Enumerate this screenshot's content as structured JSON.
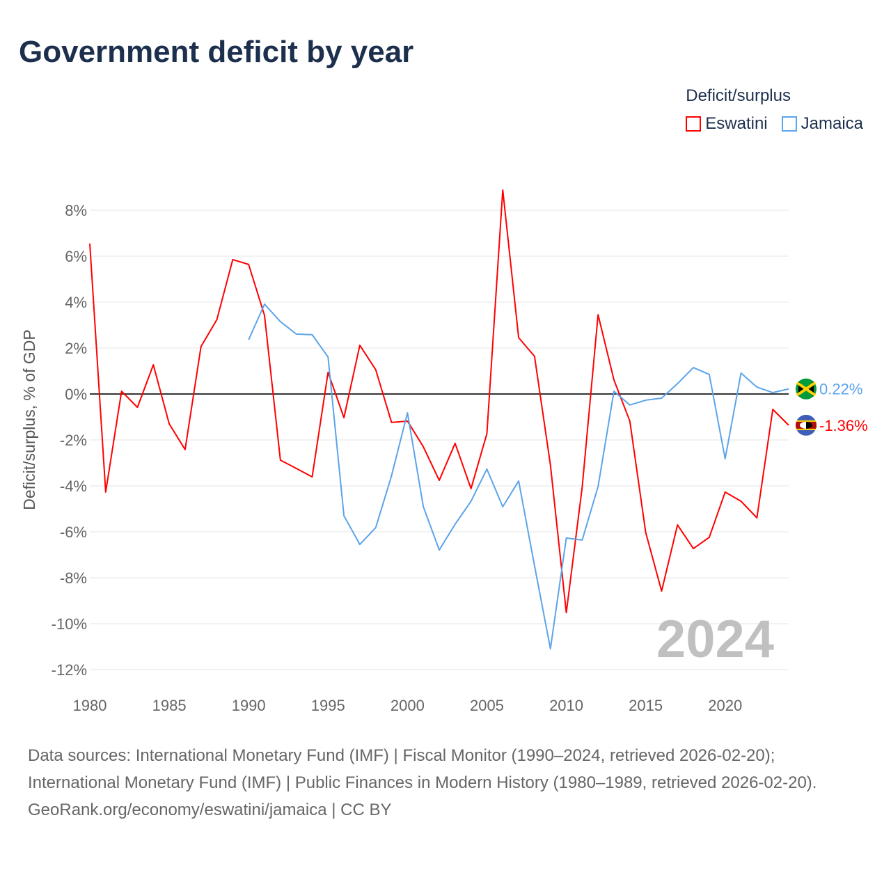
{
  "title": "Government deficit by year",
  "legend": {
    "title": "Deficit/surplus",
    "items": [
      {
        "label": "Eswatini",
        "color": "#ff0000"
      },
      {
        "label": "Jamaica",
        "color": "#5ba4ea"
      }
    ]
  },
  "footer": {
    "sources": "Data sources: International Monetary Fund (IMF) | Fiscal Monitor (1990–2024, retrieved 2026-02-20); International Monetary Fund (IMF) | Public Finances in Modern History (1980–1989, retrieved 2026-02-20).",
    "credit": "GeoRank.org/economy/eswatini/jamaica | CC BY"
  },
  "chart_data": {
    "type": "line",
    "title": "Government deficit by year",
    "xlabel": "",
    "ylabel": "Deficit/surplus, % of GDP",
    "xlim": [
      1980,
      2024
    ],
    "ylim": [
      -12,
      8
    ],
    "xticks": [
      1980,
      1985,
      1990,
      1995,
      2000,
      2005,
      2010,
      2015,
      2020
    ],
    "yticks": [
      -12,
      -10,
      -8,
      -6,
      -4,
      -2,
      0,
      2,
      4,
      6,
      8
    ],
    "ytick_labels": [
      "-12%",
      "-10%",
      "-8%",
      "-6%",
      "-4%",
      "-2%",
      "0%",
      "2%",
      "4%",
      "6%",
      "8%"
    ],
    "grid": true,
    "legend_position": "top-right",
    "year_label": "2024",
    "series": [
      {
        "name": "Eswatini",
        "color": "#ff0000",
        "end_label": "-1.36%",
        "start_year": 1980,
        "values": [
          6.55,
          -4.27,
          0.12,
          -0.58,
          1.27,
          -1.3,
          -2.42,
          2.06,
          3.24,
          5.85,
          5.64,
          3.42,
          -2.88,
          -3.24,
          -3.61,
          0.94,
          -1.03,
          2.12,
          1.06,
          -1.24,
          -1.18,
          -2.3,
          -3.76,
          -2.15,
          -4.12,
          -1.73,
          8.88,
          2.45,
          1.64,
          -3.09,
          -9.52,
          -4.06,
          3.45,
          0.61,
          -1.18,
          -6.03,
          -8.58,
          -5.7,
          -6.73,
          -6.24,
          -4.27,
          -4.67,
          -5.39,
          -0.67,
          -1.36
        ]
      },
      {
        "name": "Jamaica",
        "color": "#5ba4ea",
        "end_label": "0.22%",
        "start_year": 1990,
        "values": [
          2.36,
          3.91,
          3.15,
          2.61,
          2.58,
          1.61,
          -5.3,
          -6.55,
          -5.82,
          -3.55,
          -0.82,
          -4.91,
          -6.79,
          -5.67,
          -4.67,
          -3.27,
          -4.91,
          -3.79,
          -7.48,
          -11.09,
          -6.27,
          -6.36,
          -4.03,
          0.12,
          -0.48,
          -0.27,
          -0.18,
          0.45,
          1.15,
          0.85,
          -2.82,
          0.91,
          0.3,
          0.06,
          0.22
        ]
      }
    ]
  }
}
